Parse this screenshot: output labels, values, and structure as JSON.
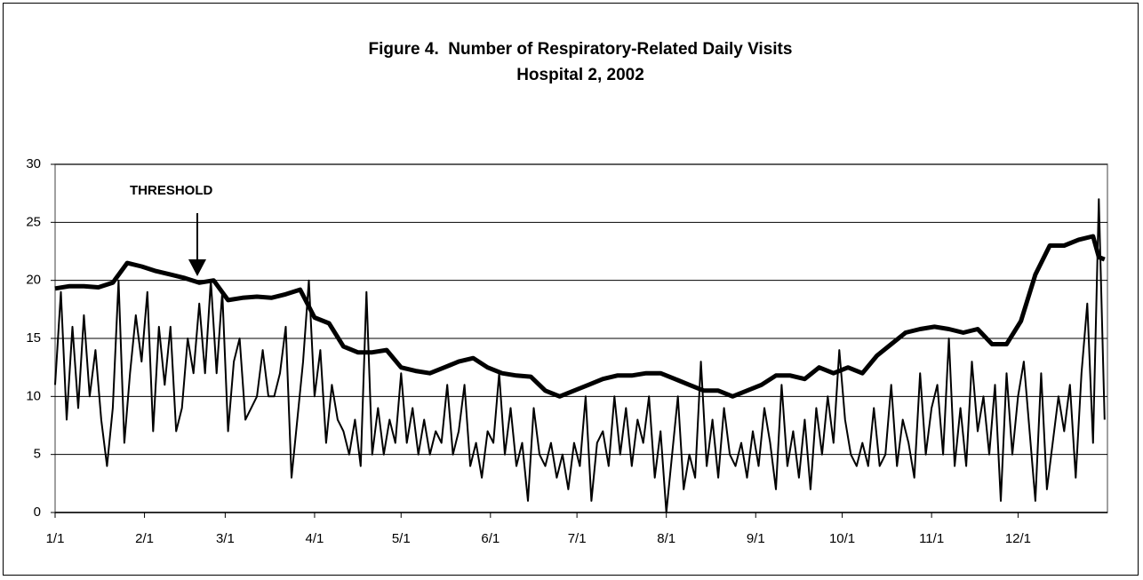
{
  "chart_data": {
    "type": "line",
    "title": "Figure 4.  Number of Respiratory-Related Daily Visits",
    "subtitle": "Hospital 2, 2002",
    "annotations": [
      {
        "text": "THRESHOLD"
      }
    ],
    "xlim": [
      0,
      365
    ],
    "xticks": [
      {
        "value": 0,
        "label": "1/1"
      },
      {
        "value": 31,
        "label": "2/1"
      },
      {
        "value": 59,
        "label": "3/1"
      },
      {
        "value": 90,
        "label": "4/1"
      },
      {
        "value": 120,
        "label": "5/1"
      },
      {
        "value": 151,
        "label": "6/1"
      },
      {
        "value": 181,
        "label": "7/1"
      },
      {
        "value": 212,
        "label": "8/1"
      },
      {
        "value": 243,
        "label": "9/1"
      },
      {
        "value": 273,
        "label": "10/1"
      },
      {
        "value": 304,
        "label": "11/1"
      },
      {
        "value": 334,
        "label": "12/1"
      }
    ],
    "ylim": [
      0,
      30
    ],
    "yticks": [
      0,
      5,
      10,
      15,
      20,
      25,
      30
    ],
    "grid": true,
    "series": [
      {
        "color": "#000000",
        "linewidth": 2,
        "x": [
          0,
          2,
          4,
          6,
          8,
          10,
          12,
          14,
          16,
          18,
          20,
          22,
          24,
          26,
          28,
          30,
          32,
          34,
          36,
          38,
          40,
          42,
          44,
          46,
          48,
          50,
          52,
          54,
          56,
          58,
          60,
          62,
          64,
          66,
          68,
          70,
          72,
          74,
          76,
          78,
          80,
          82,
          84,
          86,
          88,
          90,
          92,
          94,
          96,
          98,
          100,
          102,
          104,
          106,
          108,
          110,
          112,
          114,
          116,
          118,
          120,
          122,
          124,
          126,
          128,
          130,
          132,
          134,
          136,
          138,
          140,
          142,
          144,
          146,
          148,
          150,
          152,
          154,
          156,
          158,
          160,
          162,
          164,
          166,
          168,
          170,
          172,
          174,
          176,
          178,
          180,
          182,
          184,
          186,
          188,
          190,
          192,
          194,
          196,
          198,
          200,
          202,
          204,
          206,
          208,
          210,
          212,
          214,
          216,
          218,
          220,
          222,
          224,
          226,
          228,
          230,
          232,
          234,
          236,
          238,
          240,
          242,
          244,
          246,
          248,
          250,
          252,
          254,
          256,
          258,
          260,
          262,
          264,
          266,
          268,
          270,
          272,
          274,
          276,
          278,
          280,
          282,
          284,
          286,
          288,
          290,
          292,
          294,
          296,
          298,
          300,
          302,
          304,
          306,
          308,
          310,
          312,
          314,
          316,
          318,
          320,
          322,
          324,
          326,
          328,
          330,
          332,
          334,
          336,
          338,
          340,
          342,
          344,
          346,
          348,
          350,
          352,
          354,
          356,
          358,
          360,
          362,
          364
        ],
        "values": [
          11,
          19,
          8,
          16,
          9,
          17,
          10,
          14,
          8,
          4,
          9,
          20,
          6,
          12,
          17,
          13,
          19,
          7,
          16,
          11,
          16,
          7,
          9,
          15,
          12,
          18,
          12,
          20,
          12,
          19,
          7,
          13,
          15,
          8,
          9,
          10,
          14,
          10,
          10,
          12,
          16,
          3,
          8,
          13,
          20,
          10,
          14,
          6,
          11,
          8,
          7,
          5,
          8,
          4,
          19,
          5,
          9,
          5,
          8,
          6,
          12,
          6,
          9,
          5,
          8,
          5,
          7,
          6,
          11,
          5,
          7,
          11,
          4,
          6,
          3,
          7,
          6,
          12,
          5,
          9,
          4,
          6,
          1,
          9,
          5,
          4,
          6,
          3,
          5,
          2,
          6,
          4,
          10,
          1,
          6,
          7,
          4,
          10,
          5,
          9,
          4,
          8,
          6,
          10,
          3,
          7,
          0,
          5,
          10,
          2,
          5,
          3,
          13,
          4,
          8,
          3,
          9,
          5,
          4,
          6,
          3,
          7,
          4,
          9,
          6,
          2,
          11,
          4,
          7,
          3,
          8,
          2,
          9,
          5,
          10,
          6,
          14,
          8,
          5,
          4,
          6,
          4,
          9,
          4,
          5,
          11,
          4,
          8,
          6,
          3,
          12,
          5,
          9,
          11,
          5,
          15,
          4,
          9,
          4,
          13,
          7,
          10,
          5,
          11,
          1,
          12,
          5,
          10,
          13,
          7,
          1,
          12,
          2,
          6,
          10,
          7,
          11,
          3,
          12,
          18,
          6,
          27,
          8
        ]
      },
      {
        "color": "#000000",
        "linewidth": 5,
        "x": [
          0,
          5,
          10,
          15,
          20,
          25,
          30,
          35,
          40,
          45,
          50,
          55,
          60,
          65,
          70,
          75,
          80,
          85,
          90,
          95,
          100,
          105,
          110,
          115,
          120,
          125,
          130,
          135,
          140,
          145,
          150,
          155,
          160,
          165,
          170,
          175,
          180,
          185,
          190,
          195,
          200,
          205,
          210,
          215,
          220,
          225,
          230,
          235,
          240,
          245,
          250,
          255,
          260,
          265,
          270,
          275,
          280,
          285,
          290,
          295,
          300,
          305,
          310,
          315,
          320,
          325,
          330,
          335,
          340,
          345,
          350,
          355,
          360,
          362,
          364
        ],
        "values": [
          19.3,
          19.5,
          19.5,
          19.4,
          19.8,
          21.5,
          21.2,
          20.8,
          20.5,
          20.2,
          19.8,
          20,
          18.3,
          18.5,
          18.6,
          18.5,
          18.8,
          19.2,
          16.8,
          16.3,
          14.3,
          13.8,
          13.8,
          14,
          12.5,
          12.2,
          12,
          12.5,
          13,
          13.3,
          12.5,
          12,
          11.8,
          11.7,
          10.5,
          10,
          10.5,
          11,
          11.5,
          11.8,
          11.8,
          12,
          12,
          11.5,
          11,
          10.5,
          10.5,
          10,
          10.5,
          11,
          11.8,
          11.8,
          11.5,
          12.5,
          12,
          12.5,
          12,
          13.5,
          14.5,
          15.5,
          15.8,
          16,
          15.8,
          15.5,
          15.8,
          14.5,
          14.5,
          16.5,
          20.5,
          23,
          23,
          23.5,
          23.8,
          22,
          21.8
        ]
      }
    ]
  }
}
